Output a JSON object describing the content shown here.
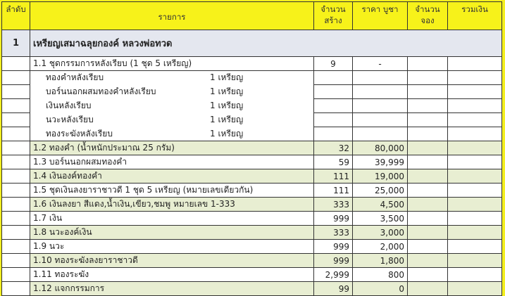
{
  "headers": [
    "ลำดับ",
    "รายการ",
    "จำนวน สร้าง",
    "ราคา บูชา",
    "จำนวน จอง",
    "รวมเงิน"
  ],
  "group": {
    "no": "1",
    "title": "เหรียญเสมาฉลุยกองค์  หลวงพ่อทวด"
  },
  "rows": [
    {
      "type": "r",
      "item": "1.1 ชุดกรรมการหลังเรียบ  (1  ชุด  5  เหรียญ)",
      "qty": "9",
      "price": "-",
      "center": true
    },
    {
      "type": "sub",
      "item": "ทองคำหลังเรียบ",
      "unit": "1 เหรียญ"
    },
    {
      "type": "sub",
      "item": "บอร์นนอกผสมทองคำหลังเรียบ",
      "unit": "1 เหรียญ"
    },
    {
      "type": "sub",
      "item": "เงินหลังเรียบ",
      "unit": "1 เหรียญ"
    },
    {
      "type": "sub",
      "item": "นวะหลังเรียบ",
      "unit": "1 เหรียญ"
    },
    {
      "type": "sub",
      "item": "ทองระฆังหลังเรียบ",
      "unit": "1 เหรียญ"
    },
    {
      "type": "g",
      "item": "1.2 ทองคำ (น้ำหนักประมาณ 25 กรัม)",
      "qty": "32",
      "price": "80,000"
    },
    {
      "type": "r",
      "item": "1.3 บอร์นนอกผสมทองคำ",
      "qty": "59",
      "price": "39,999"
    },
    {
      "type": "g",
      "item": "1.4 เงินองค์ทองคำ",
      "qty": "111",
      "price": "19,000"
    },
    {
      "type": "r",
      "item": "1.5 ชุดเงินลงยาราชาวดี   1 ชุด 5  เหรียญ (หมายเลขเดียวกัน)",
      "qty": "111",
      "price": "25,000"
    },
    {
      "type": "g",
      "item": "1.6 เงินลงยา สีแดง,น้ำเงิน,เขียว,ชมพู        หมายเลข 1-333",
      "qty": "333",
      "price": "4,500"
    },
    {
      "type": "r",
      "item": "1.7 เงิน",
      "qty": "999",
      "price": "3,500"
    },
    {
      "type": "g",
      "item": "1.8 นวะองค์เงิน",
      "qty": "333",
      "price": "3,000"
    },
    {
      "type": "r",
      "item": "1.9 นวะ",
      "qty": "999",
      "price": "2,000"
    },
    {
      "type": "g",
      "item": "1.10 ทองระฆังลงยาราชาวดี",
      "qty": "999",
      "price": "1,800"
    },
    {
      "type": "r",
      "item": "1.11 ทองระฆัง",
      "qty": "2,999",
      "price": "800"
    },
    {
      "type": "g",
      "item": "1.12 แจกกรรมการ",
      "qty": "99",
      "price": "0"
    }
  ]
}
